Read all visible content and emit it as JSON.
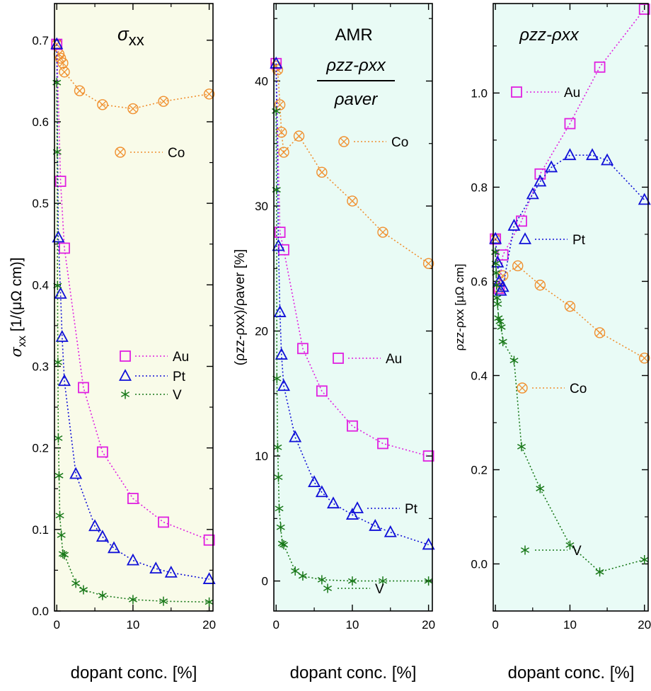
{
  "colors": {
    "panel1_bg": "#f9fbe9",
    "panel2_bg": "#e9fbf5",
    "panel3_bg": "#e9fbf6",
    "Au": "#e020e0",
    "Pt": "#1010d8",
    "V": "#187818",
    "Co": "#f09030"
  },
  "chart_data": [
    {
      "type": "scatter",
      "title": "σxx",
      "title_main": "σ",
      "title_sub": "xx",
      "xlabel": "dopant conc.   [%]",
      "ylabel_main": "σ",
      "ylabel_sub": "xx",
      "ylabel_rest": "   [1/(μΩ cm)]",
      "xlim": [
        -0.3,
        20.5
      ],
      "ylim": [
        0.0,
        0.745
      ],
      "xticks": [
        0,
        10,
        20
      ],
      "yticks": [
        0.0,
        0.1,
        0.2,
        0.3,
        0.4,
        0.5,
        0.6,
        0.7
      ],
      "yticklabels": [
        "0.0",
        "0.1",
        "0.2",
        "0.3",
        "0.4",
        "0.5",
        "0.6",
        "0.7"
      ],
      "legend": [
        {
          "label": "Co",
          "marker": "circlex",
          "color": "Co",
          "position": "upper-right"
        },
        {
          "label": "Au",
          "marker": "square",
          "color": "Au",
          "position": "middle-right"
        },
        {
          "label": "Pt",
          "marker": "triangle",
          "color": "Pt",
          "position": "middle-right"
        },
        {
          "label": "V",
          "marker": "star",
          "color": "V",
          "position": "middle-right"
        }
      ],
      "series": [
        {
          "name": "Co",
          "marker": "circlex",
          "color": "Co",
          "x": [
            0,
            0.3,
            0.5,
            0.8,
            1.0,
            3.0,
            6.0,
            10.0,
            14.0,
            20.0
          ],
          "y": [
            0.695,
            0.683,
            0.678,
            0.672,
            0.661,
            0.638,
            0.621,
            0.616,
            0.625,
            0.634
          ]
        },
        {
          "name": "Au",
          "marker": "square",
          "color": "Au",
          "x": [
            0,
            0.5,
            1.0,
            3.5,
            6.0,
            10.0,
            14.0,
            20.0
          ],
          "y": [
            0.695,
            0.527,
            0.445,
            0.274,
            0.195,
            0.138,
            0.109,
            0.087
          ]
        },
        {
          "name": "Pt",
          "marker": "triangle",
          "color": "Pt",
          "x": [
            0,
            0.2,
            0.5,
            0.7,
            1.0,
            2.5,
            5.0,
            6.0,
            7.5,
            10.0,
            13.0,
            15.0,
            20.0
          ],
          "y": [
            0.695,
            0.458,
            0.389,
            0.336,
            0.282,
            0.168,
            0.104,
            0.091,
            0.077,
            0.062,
            0.052,
            0.047,
            0.039
          ]
        },
        {
          "name": "V",
          "marker": "star",
          "color": "V",
          "x": [
            0,
            0.05,
            0.1,
            0.15,
            0.2,
            0.3,
            0.4,
            0.6,
            0.8,
            1.0,
            2.5,
            3.5,
            6.0,
            10.0,
            14.0,
            20.0
          ],
          "y": [
            0.648,
            0.563,
            0.399,
            0.305,
            0.212,
            0.166,
            0.117,
            0.093,
            0.07,
            0.069,
            0.034,
            0.026,
            0.019,
            0.014,
            0.012,
            0.011
          ]
        }
      ]
    },
    {
      "type": "scatter",
      "title_line1": "AMR",
      "title_num": "ρzz-ρxx",
      "title_den": "ρaver",
      "xlabel": "dopant conc.   [%]",
      "ylabel": "(ρzz-ρxx)/ρaver   [%]",
      "xlim": [
        -0.3,
        20.5
      ],
      "ylim": [
        -2.4,
        46.2
      ],
      "xticks": [
        0,
        10,
        20
      ],
      "yticks": [
        0,
        10,
        20,
        30,
        40
      ],
      "yticklabels": [
        "0",
        "10",
        "20",
        "30",
        "40"
      ],
      "legend": [
        {
          "label": "Co",
          "marker": "circlex",
          "color": "Co",
          "position": "upper-right"
        },
        {
          "label": "Au",
          "marker": "square",
          "color": "Au",
          "position": "middle-right"
        },
        {
          "label": "Pt",
          "marker": "triangle",
          "color": "Pt",
          "position": "lower-right"
        },
        {
          "label": "V",
          "marker": "star",
          "color": "V",
          "position": "lower-right"
        }
      ],
      "series": [
        {
          "name": "Co",
          "marker": "circlex",
          "color": "Co",
          "x": [
            0,
            0.2,
            0.5,
            0.7,
            1.0,
            3.0,
            6.0,
            10.0,
            14.0,
            20.0
          ],
          "y": [
            41.2,
            40.9,
            38.1,
            35.9,
            34.3,
            35.6,
            32.7,
            30.4,
            27.9,
            25.4
          ]
        },
        {
          "name": "Au",
          "marker": "square",
          "color": "Au",
          "x": [
            0,
            0.5,
            1.0,
            3.5,
            6.0,
            10.0,
            14.0,
            20.0
          ],
          "y": [
            41.4,
            27.9,
            26.5,
            18.6,
            15.2,
            12.4,
            11.0,
            10.0
          ]
        },
        {
          "name": "Pt",
          "marker": "triangle",
          "color": "Pt",
          "x": [
            0,
            0.3,
            0.5,
            0.7,
            1.0,
            2.5,
            5.0,
            6.0,
            7.5,
            10.0,
            13.0,
            15.0,
            20.0
          ],
          "y": [
            41.4,
            26.8,
            21.5,
            18.1,
            15.6,
            11.5,
            7.9,
            7.1,
            6.2,
            5.3,
            4.4,
            3.9,
            2.9
          ]
        },
        {
          "name": "V",
          "marker": "star",
          "color": "V",
          "x": [
            0,
            0.05,
            0.1,
            0.2,
            0.3,
            0.4,
            0.6,
            0.8,
            1.0,
            2.5,
            3.5,
            6.0,
            10.0,
            14.0,
            20.0
          ],
          "y": [
            37.6,
            31.3,
            16.2,
            10.7,
            8.3,
            5.8,
            4.3,
            3.0,
            2.9,
            0.8,
            0.4,
            0.1,
            0.0,
            0.0,
            0.0
          ]
        }
      ]
    },
    {
      "type": "scatter",
      "title_main": "ρzz-ρxx",
      "xlabel": "dopant conc.   [%]",
      "ylabel": "ρzz-ρxx   [μΩ cm]",
      "xlim": [
        -0.3,
        20.5
      ],
      "ylim": [
        -0.1,
        1.19
      ],
      "xticks": [
        0,
        10,
        20
      ],
      "yticks": [
        0.0,
        0.2,
        0.4,
        0.6,
        0.8,
        1.0
      ],
      "yticklabels": [
        "0.0",
        "0.2",
        "0.4",
        "0.6",
        "0.8",
        "1.0"
      ],
      "legend": [
        {
          "label": "Au",
          "marker": "square",
          "color": "Au",
          "position": "upper-left"
        },
        {
          "label": "Pt",
          "marker": "triangle",
          "color": "Pt",
          "position": "middle-right"
        },
        {
          "label": "Co",
          "marker": "circlex",
          "color": "Co",
          "position": "middle-right"
        },
        {
          "label": "V",
          "marker": "star",
          "color": "V",
          "position": "lower-right"
        }
      ],
      "series": [
        {
          "name": "Co",
          "marker": "circlex",
          "color": "Co",
          "x": [
            0,
            0.5,
            1.0,
            3.0,
            6.0,
            10.0,
            14.0,
            20.0
          ],
          "y": [
            0.69,
            0.585,
            0.612,
            0.633,
            0.592,
            0.547,
            0.491,
            0.437
          ]
        },
        {
          "name": "Au",
          "marker": "square",
          "color": "Au",
          "x": [
            0,
            0.5,
            1.0,
            3.5,
            6.0,
            10.0,
            14.0,
            20.0
          ],
          "y": [
            0.69,
            0.585,
            0.656,
            0.728,
            0.828,
            0.935,
            1.055,
            1.178
          ]
        },
        {
          "name": "Pt",
          "marker": "triangle",
          "color": "Pt",
          "x": [
            0,
            0.3,
            0.5,
            0.7,
            1.0,
            2.5,
            5.0,
            6.0,
            7.5,
            10.0,
            13.0,
            15.0,
            20.0
          ],
          "y": [
            0.69,
            0.64,
            0.6,
            0.58,
            0.588,
            0.718,
            0.785,
            0.812,
            0.842,
            0.868,
            0.868,
            0.857,
            0.773
          ]
        },
        {
          "name": "V",
          "marker": "star",
          "color": "V",
          "x": [
            0,
            0.05,
            0.1,
            0.15,
            0.2,
            0.3,
            0.4,
            0.6,
            0.8,
            1.0,
            2.5,
            3.5,
            6.0,
            10.0,
            14.0,
            20.0
          ],
          "y": [
            0.662,
            0.638,
            0.618,
            0.592,
            0.565,
            0.552,
            0.522,
            0.515,
            0.503,
            0.472,
            0.432,
            0.249,
            0.16,
            0.04,
            -0.017,
            0.009
          ]
        }
      ]
    }
  ]
}
